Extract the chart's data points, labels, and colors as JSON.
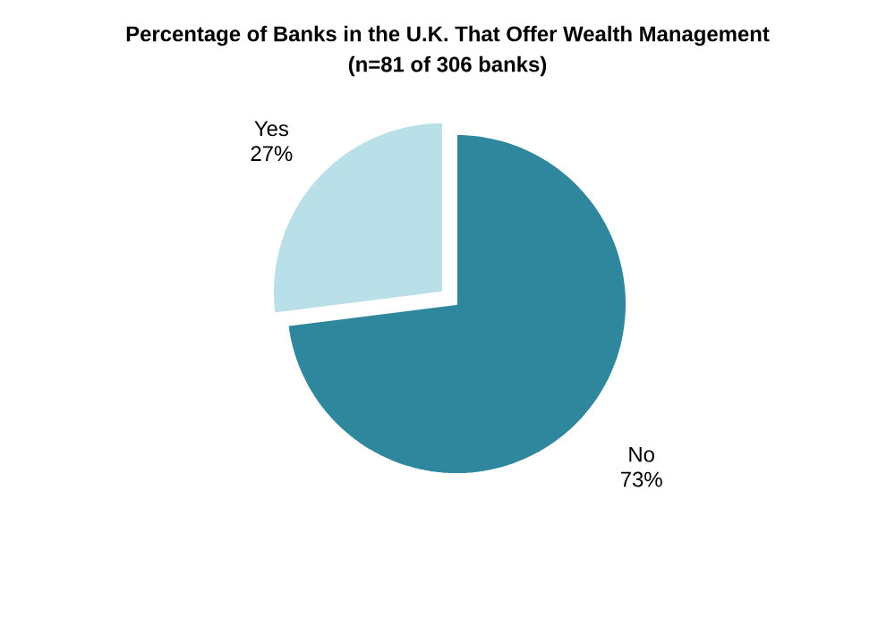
{
  "chart_data": {
    "type": "pie",
    "title": "Percentage of Banks in the U.K. That Offer Wealth Management",
    "subtitle": "(n=81 of 306 banks)",
    "categories": [
      "No",
      "Yes"
    ],
    "values": [
      73,
      27
    ],
    "colors": [
      "#2e879c",
      "#b9dfe9"
    ],
    "value_labels": [
      "73%",
      "27%"
    ]
  }
}
